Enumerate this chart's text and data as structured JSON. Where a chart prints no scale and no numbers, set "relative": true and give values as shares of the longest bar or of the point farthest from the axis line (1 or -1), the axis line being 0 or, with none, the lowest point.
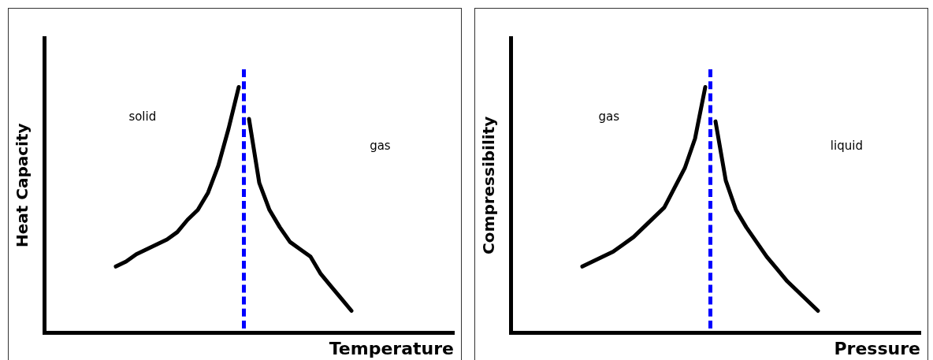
{
  "chart_data": [
    {
      "type": "line",
      "relative": true,
      "tick_labels": false,
      "legend": false,
      "line_style": "solid",
      "xlabel": "Temperature",
      "ylabel": "Heat Capacity",
      "categories": [
        null,
        null,
        null,
        null,
        null,
        null,
        null,
        null,
        null,
        null,
        null,
        null,
        null,
        null,
        null,
        null,
        null,
        null,
        null,
        null,
        null,
        null,
        null,
        null,
        null,
        null,
        null,
        null,
        null,
        null,
        null,
        null,
        null,
        null,
        null,
        null,
        null,
        null,
        null,
        null,
        null
      ],
      "series": [
        {
          "color": "#000000",
          "values": [
            null,
            null,
            null,
            null,
            null,
            null,
            null,
            0.27,
            0.29,
            0.32,
            0.34,
            0.36,
            0.38,
            0.41,
            0.46,
            0.5,
            0.57,
            0.68,
            0.83,
            1,
            null,
            null,
            null,
            null,
            null,
            null,
            null,
            null,
            null,
            null,
            null,
            null,
            null,
            null,
            null,
            null,
            null,
            null,
            null,
            null,
            null
          ]
        },
        {
          "color": "#000000",
          "values": [
            null,
            null,
            null,
            null,
            null,
            null,
            null,
            null,
            null,
            null,
            null,
            null,
            null,
            null,
            null,
            null,
            null,
            null,
            null,
            null,
            0.87,
            0.61,
            0.5,
            0.43,
            0.37,
            0.34,
            0.31,
            0.24,
            0.19,
            0.14,
            0.09,
            null,
            null,
            null,
            null,
            null,
            null,
            null,
            null,
            null,
            null
          ]
        }
      ],
      "annotations": [
        "solid",
        "gas"
      ]
    },
    {
      "type": "line",
      "relative": true,
      "tick_labels": false,
      "legend": false,
      "line_style": "solid",
      "xlabel": "Pressure",
      "ylabel": "Compressibility",
      "categories": [
        null,
        null,
        null,
        null,
        null,
        null,
        null,
        null,
        null,
        null,
        null,
        null,
        null,
        null,
        null,
        null,
        null,
        null,
        null,
        null,
        null,
        null,
        null,
        null,
        null,
        null,
        null,
        null,
        null,
        null,
        null,
        null,
        null,
        null,
        null,
        null,
        null,
        null,
        null,
        null,
        null
      ],
      "series": [
        {
          "color": "#000000",
          "values": [
            null,
            null,
            null,
            null,
            null,
            null,
            null,
            0.27,
            0.29,
            0.31,
            0.33,
            0.36,
            0.39,
            0.43,
            0.47,
            0.51,
            0.59,
            0.67,
            0.79,
            1,
            null,
            null,
            null,
            null,
            null,
            null,
            null,
            null,
            null,
            null,
            null,
            null,
            null,
            null,
            null,
            null,
            null,
            null,
            null,
            null,
            null
          ]
        },
        {
          "color": "#000000",
          "values": [
            null,
            null,
            null,
            null,
            null,
            null,
            null,
            null,
            null,
            null,
            null,
            null,
            null,
            null,
            null,
            null,
            null,
            null,
            null,
            null,
            0.86,
            0.62,
            0.5,
            0.43,
            0.37,
            0.31,
            0.26,
            0.21,
            0.17,
            0.13,
            0.09,
            null,
            null,
            null,
            null,
            null,
            null,
            null,
            null,
            null,
            null
          ]
        }
      ],
      "annotations": [
        "gas",
        "liquid"
      ]
    }
  ]
}
